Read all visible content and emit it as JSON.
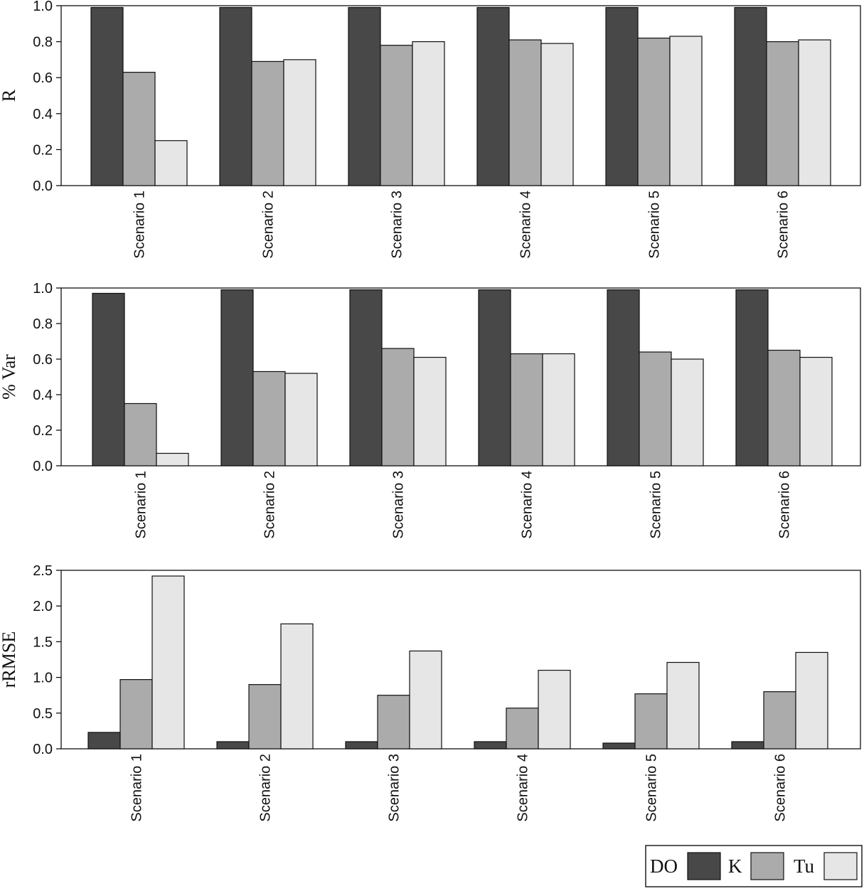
{
  "colors": {
    "DO": "#484848",
    "K": "#ababab",
    "Tu": "#e6e6e6",
    "stroke": "#111111"
  },
  "legend": {
    "items": [
      {
        "label": "DO",
        "color": "#484848"
      },
      {
        "label": "K",
        "color": "#ababab"
      },
      {
        "label": "Tu",
        "color": "#e6e6e6"
      }
    ]
  },
  "chart_data": [
    {
      "type": "bar",
      "ylabel": "R",
      "ylim": [
        0,
        1.0
      ],
      "yticks": [
        "0.0",
        "0.2",
        "0.4",
        "0.6",
        "0.8",
        "1.0"
      ],
      "categories": [
        "Scenario 1",
        "Scenario 2",
        "Scenario 3",
        "Scenario 4",
        "Scenario 5",
        "Scenario 6"
      ],
      "series": [
        {
          "name": "DO",
          "values": [
            0.99,
            0.99,
            0.99,
            0.99,
            0.99,
            0.99
          ]
        },
        {
          "name": "K",
          "values": [
            0.63,
            0.69,
            0.78,
            0.81,
            0.82,
            0.8
          ]
        },
        {
          "name": "Tu",
          "values": [
            0.25,
            0.7,
            0.8,
            0.79,
            0.83,
            0.81
          ]
        }
      ]
    },
    {
      "type": "bar",
      "ylabel": "% Var",
      "ylim": [
        0,
        1.0
      ],
      "yticks": [
        "0.0",
        "0.2",
        "0.4",
        "0.6",
        "0.8",
        "1.0"
      ],
      "categories": [
        "Scenario 1",
        "Scenario 2",
        "Scenario 3",
        "Scenario 4",
        "Scenario 5",
        "Scenario 6"
      ],
      "series": [
        {
          "name": "DO",
          "values": [
            0.97,
            0.99,
            0.99,
            0.99,
            0.99,
            0.99
          ]
        },
        {
          "name": "K",
          "values": [
            0.35,
            0.53,
            0.66,
            0.63,
            0.64,
            0.65
          ]
        },
        {
          "name": "Tu",
          "values": [
            0.07,
            0.52,
            0.61,
            0.63,
            0.6,
            0.61
          ]
        }
      ]
    },
    {
      "type": "bar",
      "ylabel": "rRMSE",
      "ylim": [
        0,
        2.5
      ],
      "yticks": [
        "0.0",
        "0.5",
        "1.0",
        "1.5",
        "2.0",
        "2.5"
      ],
      "categories": [
        "Scenario 1",
        "Scenario 2",
        "Scenario 3",
        "Scenario 4",
        "Scenario 5",
        "Scenario 6"
      ],
      "series": [
        {
          "name": "DO",
          "values": [
            0.23,
            0.1,
            0.1,
            0.1,
            0.08,
            0.1
          ]
        },
        {
          "name": "K",
          "values": [
            0.97,
            0.9,
            0.75,
            0.57,
            0.77,
            0.8
          ]
        },
        {
          "name": "Tu",
          "values": [
            2.42,
            1.75,
            1.37,
            1.1,
            1.21,
            1.35
          ]
        }
      ]
    }
  ]
}
